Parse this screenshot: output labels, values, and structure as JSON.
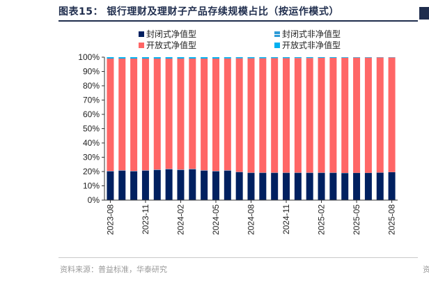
{
  "header": {
    "title": "图表15：  银行理财及理财子产品存续规模占比（按运作模式）"
  },
  "legend": [
    {
      "label": "封闭式净值型",
      "color": "#002060"
    },
    {
      "label": "封闭式非净值型",
      "color": "#2e9bd6"
    },
    {
      "label": "开放式净值型",
      "color": "#ff6666"
    },
    {
      "label": "开放式非净值型",
      "color": "#00b0f0"
    }
  ],
  "chart_data": {
    "type": "bar",
    "stacked": true,
    "categories": [
      "2023-08",
      "2023-09",
      "2023-10",
      "2023-11",
      "2023-12",
      "2024-01",
      "2024-02",
      "2024-03",
      "2024-04",
      "2024-05",
      "2024-06",
      "2024-07",
      "2024-08",
      "2024-09",
      "2024-10",
      "2024-11",
      "2024-12",
      "2025-01",
      "2025-02",
      "2025-03",
      "2025-04",
      "2025-05",
      "2025-06",
      "2025-07",
      "2025-08"
    ],
    "tick_labels": [
      "2023-08",
      "2023-11",
      "2024-02",
      "2024-05",
      "2024-08",
      "2024-11",
      "2025-02",
      "2025-05",
      "2025-08"
    ],
    "ylim": [
      0,
      100
    ],
    "yticks": [
      "0%",
      "10%",
      "20%",
      "30%",
      "40%",
      "50%",
      "60%",
      "70%",
      "80%",
      "90%",
      "100%"
    ],
    "series": [
      {
        "name": "封闭式净值型",
        "color": "#002060",
        "values": [
          20.0,
          20.5,
          20.0,
          20.5,
          21.0,
          21.5,
          21.0,
          21.5,
          20.5,
          20.0,
          20.5,
          19.5,
          19.0,
          19.0,
          19.0,
          19.0,
          19.0,
          19.0,
          19.0,
          19.0,
          18.8,
          19.0,
          19.0,
          19.2,
          19.5
        ]
      },
      {
        "name": "封闭式非净值型",
        "color": "#2e9bd6",
        "values": [
          0.3,
          0.3,
          0.3,
          0.3,
          0.3,
          0.3,
          0.3,
          0.3,
          0.3,
          0.3,
          0.3,
          0.2,
          0.2,
          0.2,
          0.2,
          0.2,
          0.2,
          0.2,
          0.2,
          0.2,
          0.2,
          0.1,
          0.1,
          0.1,
          0.1
        ]
      },
      {
        "name": "开放式净值型",
        "color": "#ff6666",
        "values": [
          78.7,
          78.2,
          78.7,
          78.2,
          77.7,
          77.2,
          77.7,
          77.2,
          78.2,
          78.7,
          78.3,
          79.5,
          80.0,
          80.0,
          80.1,
          80.1,
          80.2,
          80.2,
          80.3,
          80.3,
          80.6,
          80.6,
          80.6,
          80.5,
          80.2
        ]
      },
      {
        "name": "开放式非净值型",
        "color": "#00b0f0",
        "values": [
          1.0,
          1.0,
          1.0,
          1.0,
          1.0,
          1.0,
          1.0,
          1.0,
          1.0,
          1.0,
          0.9,
          0.8,
          0.8,
          0.8,
          0.7,
          0.7,
          0.6,
          0.6,
          0.5,
          0.5,
          0.4,
          0.3,
          0.3,
          0.2,
          0.2
        ]
      }
    ]
  },
  "footer": {
    "source": "资料来源：普益标准，华泰研究",
    "edge_char": "资"
  }
}
